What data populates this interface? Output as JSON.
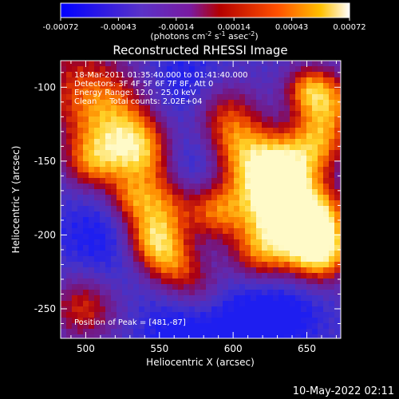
{
  "chart_data": {
    "type": "heatmap",
    "title": "Reconstructed RHESSI Image",
    "xlabel": "Heliocentric X (arcsec)",
    "ylabel": "Heliocentric Y (arcsec)",
    "xlim": [
      483,
      673
    ],
    "ylim": [
      -270,
      -82
    ],
    "xticks": [
      500,
      550,
      600,
      650
    ],
    "yticks": [
      -100,
      -150,
      -200,
      -250
    ],
    "colorbar": {
      "range": [
        -0.00072,
        0.00072
      ],
      "tick_labels": [
        "-0.00072",
        "-0.00043",
        "-0.00014",
        "0.00014",
        "0.00043",
        "0.00072"
      ],
      "unit_line1": "(photons cm",
      "unit_sup1": "-2",
      "unit_line2": " s",
      "unit_sup2": "-1",
      "unit_line3": " asec",
      "unit_sup3": "-2",
      "unit_line4": ")"
    },
    "annotations": [
      "18-Mar-2011 01:35:40.000 to 01:41:40.000",
      "Detectors: 3F 4F 5F 6F 7F 8F, Att 0",
      "Energy Range: 12.0 - 25.0 keV",
      "Clean     Total counts: 2.02E+04"
    ],
    "peak_label": "Position of Peak = [481,-87]",
    "timestamp": "10-May-2022 02:11",
    "grid": false
  }
}
